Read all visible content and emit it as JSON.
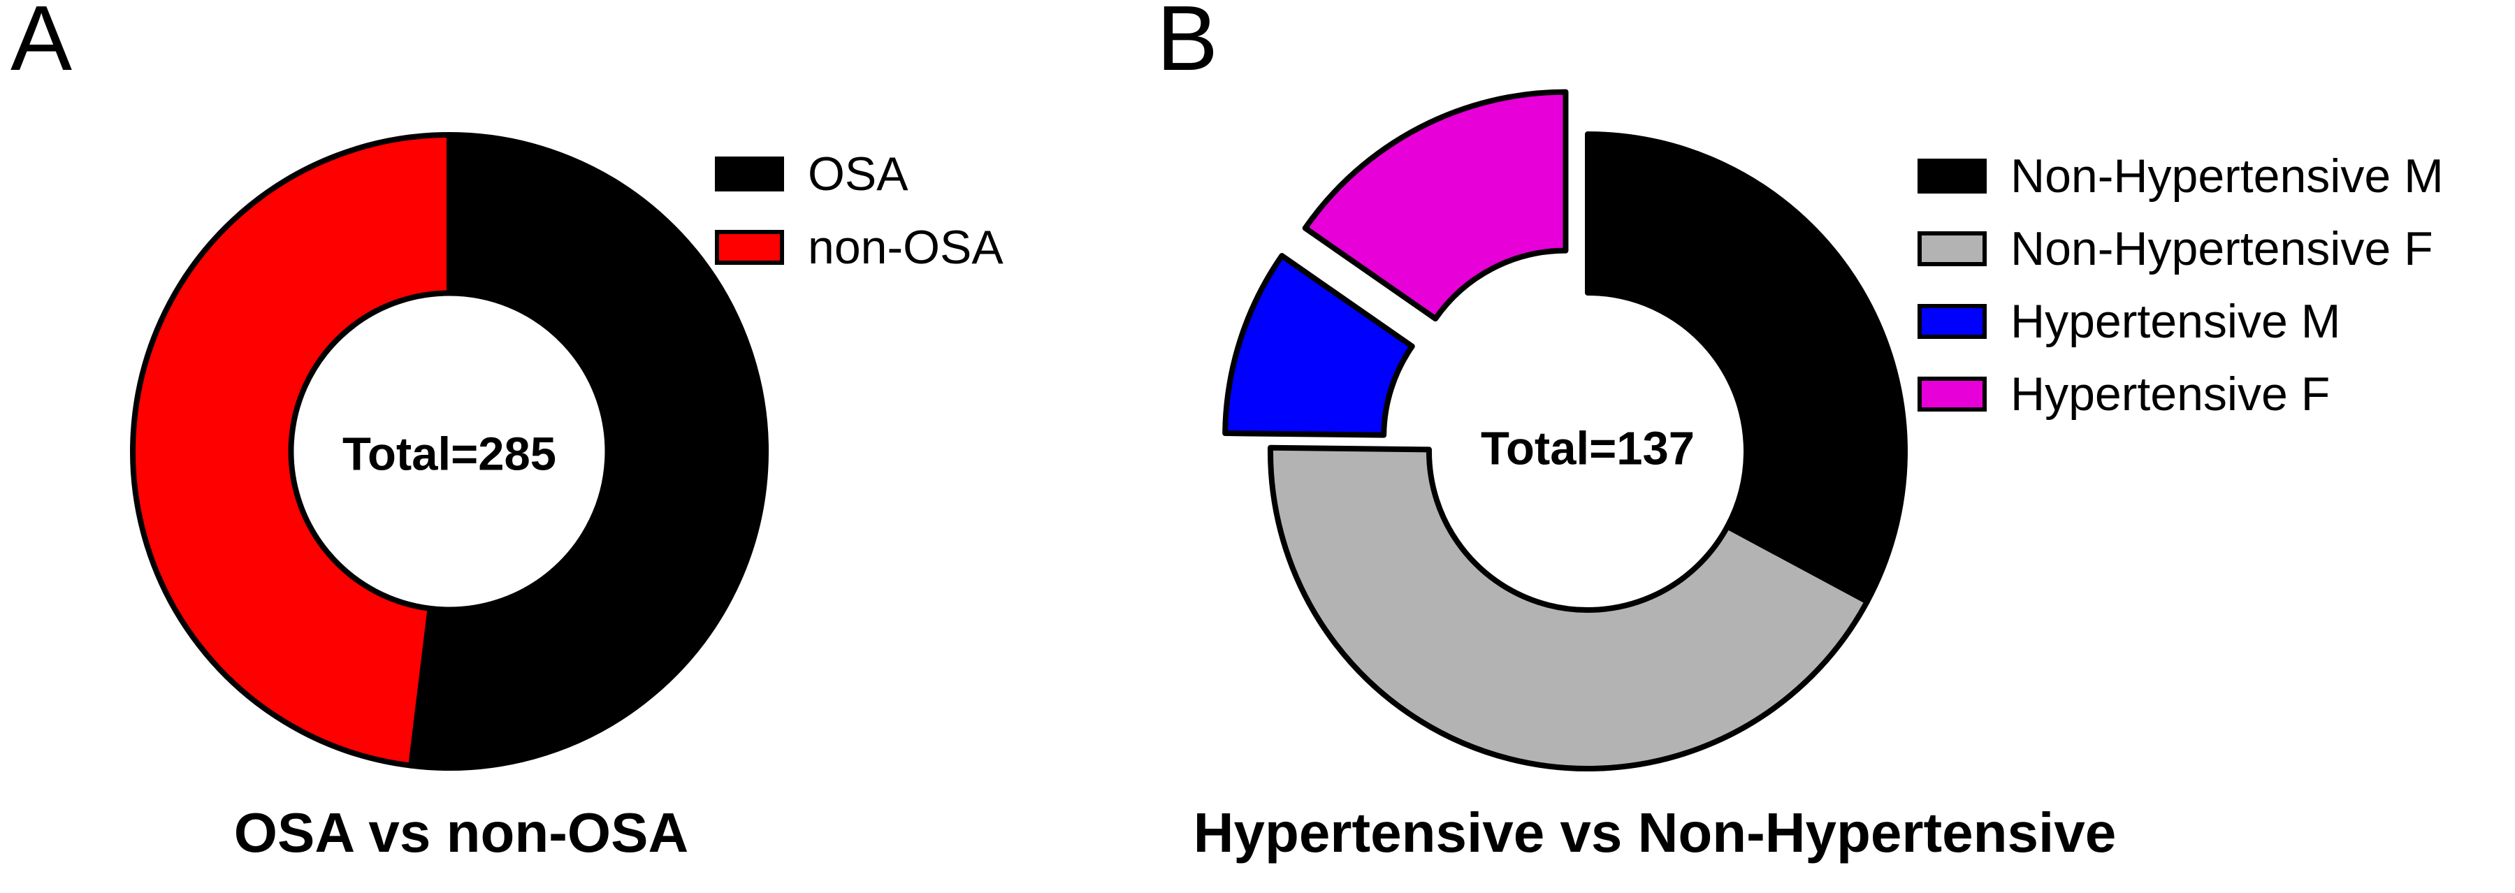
{
  "page": {
    "background": "#FFFFFF"
  },
  "panel_a": {
    "letter": "A"
  },
  "panel_b": {
    "letter": "B"
  },
  "colors": {
    "black": "#000000",
    "red": "#FF0000",
    "gray": "#B3B3B3",
    "blue": "#0000FF",
    "magenta": "#E800D8"
  },
  "chart_data": [
    {
      "type": "pie",
      "variant": "donut",
      "panel": "A",
      "title": "OSA vs non-OSA",
      "center_label": "Total=285",
      "total": 285,
      "start_angle_deg": 0,
      "direction": "clockwise",
      "hole_ratio": 0.5,
      "stroke_color": "#000000",
      "legend_position": "right",
      "slices": [
        {
          "label": "OSA",
          "value": 148,
          "color": "#000000",
          "explode": 0
        },
        {
          "label": "non-OSA",
          "value": 137,
          "color": "#FF0000",
          "explode": 0
        }
      ]
    },
    {
      "type": "pie",
      "variant": "donut",
      "panel": "B",
      "title": "Hypertensive vs Non-Hypertensive",
      "center_label": "Total=137",
      "total": 137,
      "start_angle_deg": 0,
      "direction": "clockwise",
      "hole_ratio": 0.5,
      "stroke_color": "#000000",
      "legend_position": "right",
      "slices": [
        {
          "label": "Non-Hypertensive M",
          "value": 45,
          "color": "#000000",
          "explode": 0
        },
        {
          "label": "Non-Hypertensive F",
          "value": 58,
          "color": "#B3B3B3",
          "explode": 0
        },
        {
          "label": "Hypertensive M",
          "value": 13,
          "color": "#0000FF",
          "explode": 0.15
        },
        {
          "label": "Hypertensive F",
          "value": 21,
          "color": "#E800D8",
          "explode": 0.15
        }
      ]
    }
  ]
}
